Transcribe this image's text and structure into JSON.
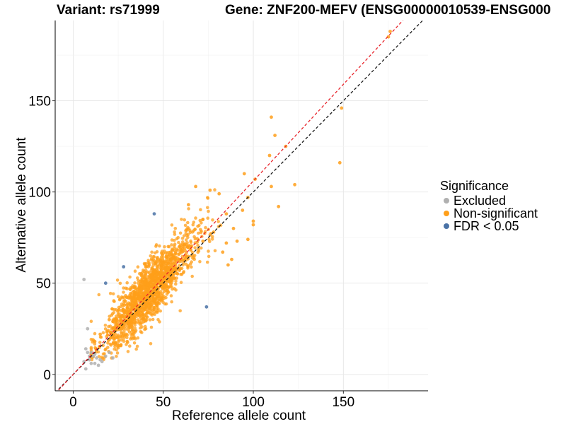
{
  "titles": {
    "left": "Variant: rs71999",
    "right": "Gene: ZNF200-MEFV (ENSG00000010539-ENSG000"
  },
  "chart_data": {
    "type": "scatter",
    "title": "Variant: rs71999    Gene: ZNF200-MEFV (ENSG00000010539-ENSG000",
    "xlabel": "Reference allele count",
    "ylabel": "Alternative allele count",
    "xlim": [
      -10,
      197
    ],
    "ylim": [
      -9,
      194
    ],
    "xticks": [
      0,
      50,
      100,
      150
    ],
    "yticks": [
      0,
      50,
      100,
      150
    ],
    "grid": true,
    "legend": {
      "title": "Significance",
      "position": "right",
      "items": [
        {
          "label": "Excluded",
          "color": "#b0b0b0"
        },
        {
          "label": "Non-significant",
          "color": "#ff9f1a"
        },
        {
          "label": "FDR < 0.05",
          "color": "#4a72a6"
        }
      ]
    },
    "reference_lines": [
      {
        "name": "identity y = x",
        "slope": 1.0,
        "intercept": 0,
        "color": "#1a1a1a",
        "style": "dashed"
      },
      {
        "name": "fitted",
        "slope": 1.06,
        "intercept": 0,
        "color": "#e8232a",
        "style": "dashed"
      }
    ],
    "series": [
      {
        "name": "Non-significant",
        "color": "#ff9f1a",
        "bulk": {
          "count": 1500,
          "x_center": 42,
          "x_spread": 13,
          "ratio": 1.08,
          "noise": 8,
          "x_min": 10,
          "x_max": 90
        },
        "points": [
          [
            176,
            188
          ],
          [
            175,
            185
          ],
          [
            149,
            146
          ],
          [
            148,
            116
          ],
          [
            110,
            141
          ],
          [
            112,
            131
          ],
          [
            118,
            125
          ],
          [
            109,
            120
          ],
          [
            123,
            104
          ],
          [
            101,
            107
          ],
          [
            110,
            103
          ],
          [
            95,
            110
          ],
          [
            97,
            97
          ],
          [
            94,
            90
          ],
          [
            114,
            92
          ],
          [
            76,
            101
          ],
          [
            81,
            99
          ],
          [
            68,
            103
          ],
          [
            85,
            88
          ],
          [
            89,
            80
          ],
          [
            78,
            78
          ],
          [
            64,
            93
          ],
          [
            72,
            85
          ],
          [
            100,
            82
          ],
          [
            91,
            73
          ],
          [
            85,
            72
          ],
          [
            83,
            67
          ],
          [
            97,
            74
          ],
          [
            88,
            63
          ],
          [
            20,
            30
          ],
          [
            25,
            20
          ],
          [
            15,
            22
          ],
          [
            22,
            29
          ],
          [
            27,
            28
          ],
          [
            12,
            18
          ],
          [
            33,
            22
          ],
          [
            30,
            18
          ],
          [
            86,
            60
          ],
          [
            100,
            84
          ],
          [
            72,
            73
          ]
        ]
      },
      {
        "name": "Excluded",
        "color": "#b0b0b0",
        "points": [
          [
            6,
            52
          ],
          [
            8,
            25
          ],
          [
            7,
            14
          ],
          [
            8,
            12
          ],
          [
            10,
            12
          ],
          [
            11,
            10
          ],
          [
            12,
            11
          ],
          [
            9,
            8
          ],
          [
            10,
            6
          ],
          [
            12,
            6
          ],
          [
            7,
            3
          ],
          [
            15,
            8
          ],
          [
            16,
            7
          ],
          [
            18,
            10
          ],
          [
            22,
            9
          ],
          [
            14,
            5
          ],
          [
            20,
            12
          ],
          [
            9,
            10
          ],
          [
            13,
            9
          ],
          [
            6,
            7
          ]
        ]
      },
      {
        "name": "FDR < 0.05",
        "color": "#4a72a6",
        "points": [
          [
            45,
            88
          ],
          [
            28,
            59
          ],
          [
            18,
            50
          ],
          [
            74,
            37
          ]
        ]
      }
    ]
  }
}
